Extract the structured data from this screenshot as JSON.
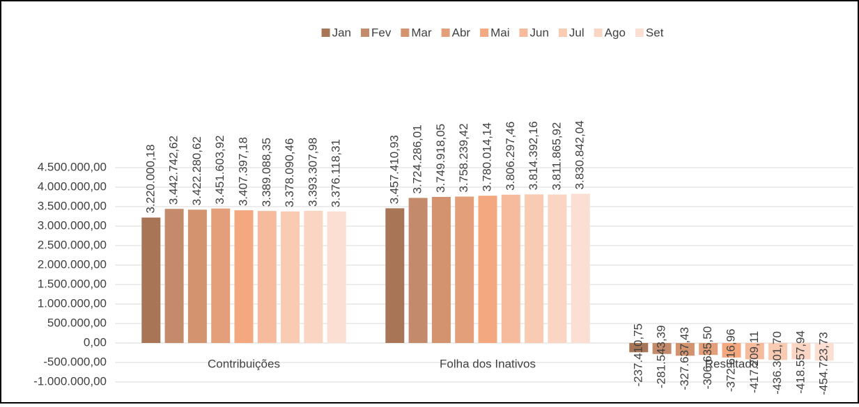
{
  "chart_data": {
    "type": "bar",
    "categories": [
      "Contribuições",
      "Folha dos Inativos",
      "Resultado"
    ],
    "series": [
      {
        "name": "Jan",
        "color": "#a87656",
        "values": [
          3220000.18,
          3457410.93,
          -237410.75
        ],
        "value_labels": [
          "3.220.000,18",
          "3.457.410,93",
          "-237.410,75"
        ]
      },
      {
        "name": "Fev",
        "color": "#c38a6b",
        "values": [
          3442742.62,
          3724286.01,
          -281543.39
        ],
        "value_labels": [
          "3.442.742,62",
          "3.724.286,01",
          "-281.543,39"
        ]
      },
      {
        "name": "Mar",
        "color": "#d3936e",
        "values": [
          3422280.62,
          3749918.05,
          -327637.43
        ],
        "value_labels": [
          "3.422.280,62",
          "3.749.918,05",
          "-327.637,43"
        ]
      },
      {
        "name": "Abr",
        "color": "#e39f79",
        "values": [
          3451603.92,
          3758239.42,
          -306635.5
        ],
        "value_labels": [
          "3.451.603,92",
          "3.758.239,42",
          "-306.635,50"
        ]
      },
      {
        "name": "Mai",
        "color": "#f4a87f",
        "values": [
          3407397.18,
          3780014.14,
          -372616.96
        ],
        "value_labels": [
          "3.407.397,18",
          "3.780.014,14",
          "-372.616,96"
        ]
      },
      {
        "name": "Jun",
        "color": "#f6bb9d",
        "values": [
          3389088.35,
          3806297.46,
          -417209.11
        ],
        "value_labels": [
          "3.389.088,35",
          "3.806.297,46",
          "-417.209,11"
        ]
      },
      {
        "name": "Jul",
        "color": "#f8cbb2",
        "values": [
          3378090.46,
          3814392.16,
          -436301.7
        ],
        "value_labels": [
          "3.378.090,46",
          "3.814.392,16",
          "-436.301,70"
        ]
      },
      {
        "name": "Ago",
        "color": "#fad5c3",
        "values": [
          3393307.98,
          3811865.92,
          -418557.94
        ],
        "value_labels": [
          "3.393.307,98",
          "3.811.865,92",
          "-418.557,94"
        ]
      },
      {
        "name": "Set",
        "color": "#fcdfd3",
        "values": [
          3376118.31,
          3830842.04,
          -454723.73
        ],
        "value_labels": [
          "3.376.118,31",
          "3.830.842,04",
          "-454.723,73"
        ]
      }
    ],
    "ylim": [
      -1000000,
      4500000
    ],
    "yticks": [
      {
        "value": -1000000,
        "label": "-1.000.000,00"
      },
      {
        "value": -500000,
        "label": "-500.000,00"
      },
      {
        "value": 0,
        "label": "0,00"
      },
      {
        "value": 500000,
        "label": "500.000,00"
      },
      {
        "value": 1000000,
        "label": "1.000.000,00"
      },
      {
        "value": 1500000,
        "label": "1.500.000,00"
      },
      {
        "value": 2000000,
        "label": "2.000.000,00"
      },
      {
        "value": 2500000,
        "label": "2.500.000,00"
      },
      {
        "value": 3000000,
        "label": "3.000.000,00"
      },
      {
        "value": 3500000,
        "label": "3.500.000,00"
      },
      {
        "value": 4000000,
        "label": "4.000.000,00"
      },
      {
        "value": 4500000,
        "label": "4.500.000,00"
      }
    ],
    "grid": true,
    "legend": "top"
  }
}
